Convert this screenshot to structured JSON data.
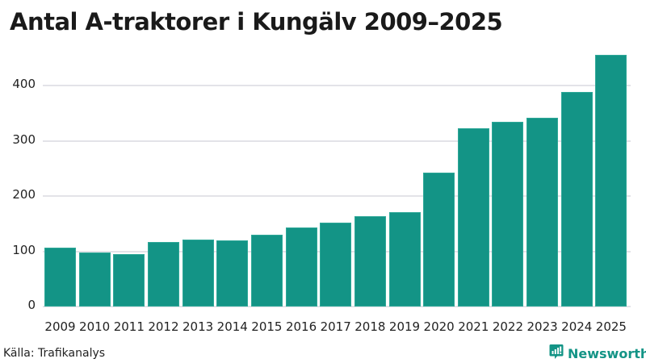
{
  "title": "Antal A-traktorer i Kungälv 2009–2025",
  "source": "Källa: Trafikanalys",
  "brand": {
    "name": "Newsworthy",
    "icon": "newsworthy-logo-icon",
    "color": "#139486"
  },
  "colors": {
    "bar": "#139486",
    "grid": "#e3e3e8",
    "text": "#1a1a1a"
  },
  "y_ticks": [
    "0",
    "100",
    "200",
    "300",
    "400"
  ],
  "chart_data": {
    "type": "bar",
    "title": "Antal A-traktorer i Kungälv 2009–2025",
    "xlabel": "",
    "ylabel": "",
    "categories": [
      "2009",
      "2010",
      "2011",
      "2012",
      "2013",
      "2014",
      "2015",
      "2016",
      "2017",
      "2018",
      "2019",
      "2020",
      "2021",
      "2022",
      "2023",
      "2024",
      "2025"
    ],
    "values": [
      106,
      98,
      95,
      117,
      121,
      120,
      130,
      143,
      152,
      163,
      171,
      242,
      322,
      335,
      341,
      389,
      455
    ],
    "ylim": [
      0,
      460
    ],
    "yticks": [
      0,
      100,
      200,
      300,
      400
    ],
    "grid": true,
    "legend": null,
    "source": "Trafikanalys"
  }
}
